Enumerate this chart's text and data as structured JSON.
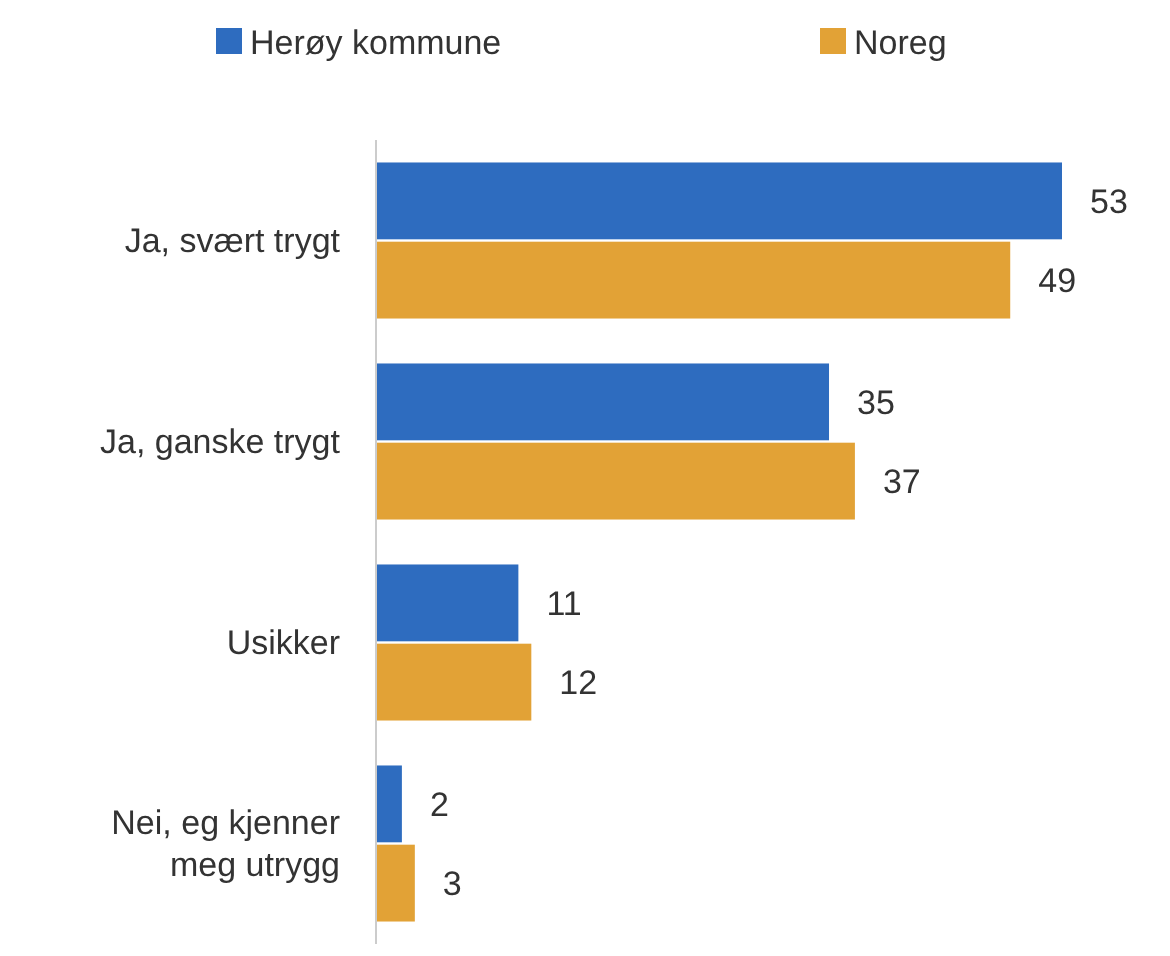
{
  "chart_data": {
    "type": "bar",
    "orientation": "horizontal",
    "categories": [
      "Ja, svært trygt",
      "Ja, ganske trygt",
      "Usikker",
      "Nei, eg kjenner meg utrygg"
    ],
    "series": [
      {
        "name": "Herøy kommune",
        "color": "#2e6cbf",
        "values": [
          53,
          35,
          11,
          2
        ]
      },
      {
        "name": "Noreg",
        "color": "#e2a236",
        "values": [
          49,
          37,
          12,
          3
        ]
      }
    ],
    "data_labels": true,
    "legend": "top"
  }
}
